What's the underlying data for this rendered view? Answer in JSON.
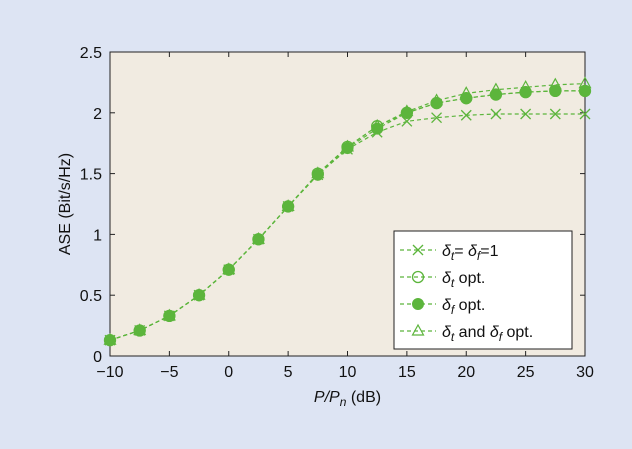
{
  "chart_data": {
    "type": "line",
    "xlabel_main": "P",
    "xlabel_over": "/P",
    "xlabel_sub": "n",
    "xlabel_unit": " (dB)",
    "ylabel": "ASE (Bit/s/Hz)",
    "xlim": [
      -10,
      30
    ],
    "ylim": [
      0,
      2.5
    ],
    "x_ticks": [
      "−10",
      "−5",
      "0",
      "5",
      "10",
      "15",
      "20",
      "25",
      "30"
    ],
    "x_tick_values": [
      -10,
      -5,
      0,
      5,
      10,
      15,
      20,
      25,
      30
    ],
    "y_ticks": [
      "0",
      "0.5",
      "1",
      "1.5",
      "2",
      "2.5"
    ],
    "y_tick_values": [
      0,
      0.5,
      1,
      1.5,
      2,
      2.5
    ],
    "grid": false,
    "legend_position": "bottom-right",
    "colors": {
      "series": "#5cb53c",
      "plot_background": "#f1ebe1",
      "page_background": "#dde4f3"
    },
    "x": [
      -10,
      -7.5,
      -5,
      -2.5,
      0,
      2.5,
      5,
      7.5,
      10,
      12.5,
      15,
      17.5,
      20,
      22.5,
      25,
      27.5,
      30
    ],
    "series": [
      {
        "name": "δt = δf = 1",
        "legend": [
          {
            "t": "δ",
            "i": true
          },
          {
            "t": "t",
            "sub": true,
            "i": true
          },
          {
            "t": "= "
          },
          {
            "t": "δ",
            "i": true
          },
          {
            "t": "f",
            "sub": true,
            "i": true
          },
          {
            "t": "=1"
          }
        ],
        "marker": "x",
        "values": [
          0.13,
          0.21,
          0.33,
          0.5,
          0.71,
          0.96,
          1.23,
          1.49,
          1.7,
          1.84,
          1.93,
          1.96,
          1.98,
          1.99,
          1.99,
          1.99,
          1.99
        ]
      },
      {
        "name": "δt opt.",
        "legend": [
          {
            "t": "δ",
            "i": true
          },
          {
            "t": "t",
            "sub": true,
            "i": true
          },
          {
            "t": " opt."
          }
        ],
        "marker": "open-circle",
        "values": [
          0.13,
          0.21,
          0.33,
          0.5,
          0.71,
          0.96,
          1.23,
          1.5,
          1.72,
          1.89,
          2.0,
          2.08,
          2.12,
          2.15,
          2.17,
          2.18,
          2.18
        ]
      },
      {
        "name": "δf opt.",
        "legend": [
          {
            "t": "δ",
            "i": true
          },
          {
            "t": "f",
            "sub": true,
            "i": true
          },
          {
            "t": " opt."
          }
        ],
        "marker": "filled-circle",
        "values": [
          0.13,
          0.21,
          0.33,
          0.5,
          0.71,
          0.96,
          1.23,
          1.49,
          1.71,
          1.87,
          2.0,
          2.08,
          2.12,
          2.15,
          2.17,
          2.18,
          2.18
        ]
      },
      {
        "name": "δt and δf opt.",
        "legend": [
          {
            "t": "δ",
            "i": true
          },
          {
            "t": "t",
            "sub": true,
            "i": true
          },
          {
            "t": " and "
          },
          {
            "t": "δ",
            "i": true
          },
          {
            "t": "f",
            "sub": true,
            "i": true
          },
          {
            "t": " opt."
          }
        ],
        "marker": "open-triangle",
        "values": [
          0.13,
          0.21,
          0.33,
          0.5,
          0.71,
          0.96,
          1.23,
          1.5,
          1.72,
          1.89,
          2.01,
          2.1,
          2.16,
          2.19,
          2.21,
          2.23,
          2.24
        ]
      }
    ]
  }
}
